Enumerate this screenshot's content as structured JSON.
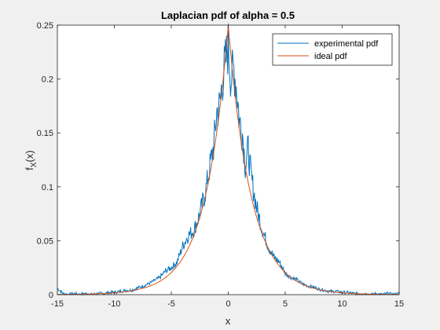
{
  "chart_data": {
    "type": "line",
    "title": "Laplacian pdf of alpha = 0.5",
    "xlabel": "x",
    "ylabel_main": "f",
    "ylabel_sub": "X",
    "ylabel_tail": "(x)",
    "xlim": [
      -15,
      15
    ],
    "ylim": [
      0,
      0.25
    ],
    "xticks": [
      -15,
      -10,
      -5,
      0,
      5,
      10,
      15
    ],
    "xtick_labels": [
      "-15",
      "-10",
      "-5",
      "0",
      "5",
      "10",
      "15"
    ],
    "yticks": [
      0,
      0.05,
      0.1,
      0.15,
      0.2,
      0.25
    ],
    "ytick_labels": [
      "0",
      "0.05",
      "0.1",
      "0.15",
      "0.2",
      "0.25"
    ],
    "grid": false,
    "legend_position": "top-right",
    "colors": {
      "experimental": "#0072bd",
      "ideal": "#d95319",
      "axes_bg": "#ffffff",
      "figure_bg": "#f0f0f0"
    },
    "series": [
      {
        "name": "experimental pdf",
        "x": [
          -15,
          -14.5,
          -14,
          -13.5,
          -13,
          -12.5,
          -12,
          -11.5,
          -11,
          -10.5,
          -10,
          -9.5,
          -9,
          -8.5,
          -8,
          -7.5,
          -7,
          -6.5,
          -6,
          -5.5,
          -5,
          -4.5,
          -4,
          -3.5,
          -3,
          -2.5,
          -2,
          -1.75,
          -1.5,
          -1.25,
          -1,
          -0.75,
          -0.5,
          -0.25,
          0,
          0.25,
          0.5,
          0.75,
          1,
          1.25,
          1.5,
          1.75,
          2,
          2.5,
          3,
          3.5,
          4,
          4.5,
          5,
          5.5,
          6,
          6.5,
          7,
          7.5,
          8,
          8.5,
          9,
          9.5,
          10,
          10.5,
          11,
          11.5,
          12,
          12.5,
          13,
          13.5,
          14,
          14.5,
          15
        ],
        "y": [
          0.006,
          0.001,
          0.0,
          0.001,
          0.0,
          0.001,
          0.0,
          0.001,
          0.001,
          0.002,
          0.002,
          0.003,
          0.004,
          0.004,
          0.006,
          0.008,
          0.01,
          0.013,
          0.016,
          0.022,
          0.025,
          0.03,
          0.045,
          0.055,
          0.06,
          0.075,
          0.095,
          0.11,
          0.125,
          0.14,
          0.17,
          0.175,
          0.2,
          0.215,
          0.23,
          0.2,
          0.21,
          0.19,
          0.16,
          0.15,
          0.12,
          0.135,
          0.11,
          0.08,
          0.06,
          0.045,
          0.035,
          0.03,
          0.02,
          0.016,
          0.014,
          0.01,
          0.008,
          0.007,
          0.005,
          0.004,
          0.003,
          0.003,
          0.002,
          0.002,
          0.001,
          0.001,
          0.001,
          0.0,
          0.001,
          0.0,
          0.001,
          0.0,
          0.001
        ]
      },
      {
        "name": "ideal pdf",
        "formula": "0.25 * exp(-0.5 * |x|)",
        "x_range": [
          -15,
          15
        ]
      }
    ]
  }
}
